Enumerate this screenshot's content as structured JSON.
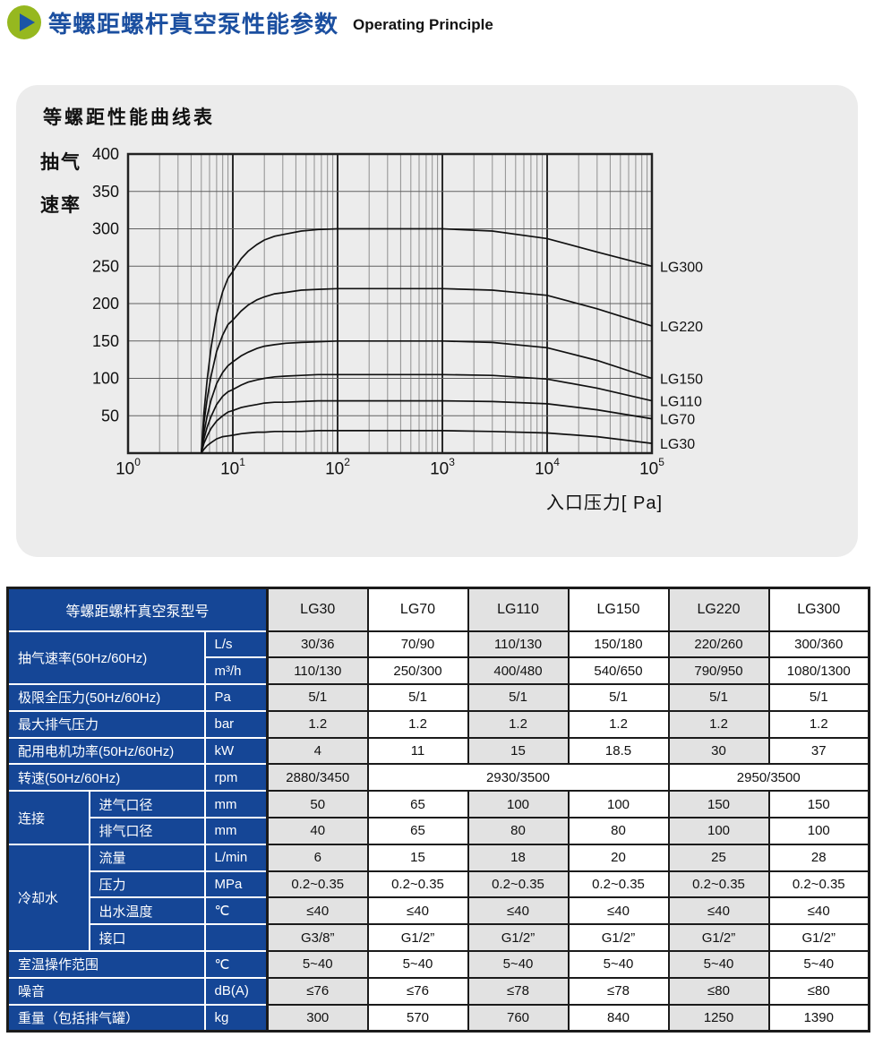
{
  "page": {
    "title": "等螺距螺杆真空泵性能参数",
    "subtitle": "Operating Principle"
  },
  "colors": {
    "title_blue": "#1b4fa0",
    "table_header_blue": "#154696",
    "icon_green": "#96b81f",
    "icon_triangle_blue": "#1b55a6",
    "card_background": "#ececec",
    "cell_gray": "#e2e2e2",
    "cell_white": "#ffffff",
    "border_dark": "#1b1b1b",
    "curve_black": "#111111"
  },
  "chart_data": {
    "type": "line",
    "title": "等螺距性能曲线表",
    "ylabel_lines": [
      "抽气",
      "速率"
    ],
    "xlabel": "入口压力[ Pa]",
    "x_scale": "log",
    "x_tick_base": "10",
    "x_tick_exponents": [
      0,
      1,
      2,
      3,
      4,
      5
    ],
    "xlim": [
      1,
      100000
    ],
    "ylim": [
      0,
      400
    ],
    "y_ticks": [
      50,
      100,
      150,
      200,
      250,
      300,
      350,
      400
    ],
    "grid": true,
    "legend_position": "right-of-curves",
    "x": [
      5,
      5.3,
      5.7,
      6.2,
      7,
      8,
      9,
      10,
      12,
      14,
      17,
      20,
      25,
      32,
      45,
      65,
      100,
      300,
      1000,
      3000,
      10000,
      30000,
      100000
    ],
    "series": [
      {
        "name": "LG300",
        "values": [
          0,
          54,
          99,
          141,
          186,
          216,
          234,
          243,
          260,
          270,
          279,
          285,
          290,
          293,
          297,
          299,
          300,
          300,
          300,
          297,
          287,
          269,
          250
        ]
      },
      {
        "name": "LG220",
        "values": [
          0,
          40,
          73,
          103,
          136,
          158,
          172,
          178,
          190,
          198,
          205,
          209,
          213,
          215,
          218,
          219,
          220,
          220,
          220,
          218,
          211,
          193,
          170
        ]
      },
      {
        "name": "LG150",
        "values": [
          0,
          27,
          50,
          71,
          93,
          108,
          117,
          122,
          130,
          135,
          140,
          143,
          145,
          147,
          148,
          149,
          150,
          150,
          150,
          148,
          141,
          124,
          100
        ]
      },
      {
        "name": "LG110",
        "values": [
          0,
          19,
          35,
          49,
          65,
          76,
          82,
          85,
          91,
          95,
          98,
          100,
          102,
          103,
          104,
          105,
          105,
          105,
          105,
          104,
          99,
          87,
          70
        ]
      },
      {
        "name": "LG70",
        "values": [
          0,
          13,
          23,
          33,
          43,
          50,
          55,
          57,
          61,
          63,
          65,
          67,
          68,
          68,
          69,
          70,
          70,
          70,
          70,
          69,
          66,
          58,
          46
        ]
      },
      {
        "name": "LG30",
        "values": [
          0,
          5,
          10,
          14,
          19,
          22,
          23,
          24,
          26,
          27,
          28,
          28,
          29,
          29,
          29,
          30,
          30,
          30,
          30,
          29,
          27,
          22,
          13
        ]
      }
    ]
  },
  "table": {
    "header": {
      "label": "等螺距螺杆真空泵型号",
      "models": [
        "LG30",
        "LG70",
        "LG110",
        "LG150",
        "LG220",
        "LG300"
      ]
    },
    "rows": [
      {
        "label": "抽气速率(50Hz/60Hz)",
        "label_rows": 2,
        "unit": "L/s",
        "cells": [
          "30/36",
          "70/90",
          "110/130",
          "150/180",
          "220/260",
          "300/360"
        ]
      },
      {
        "unit": "m³/h",
        "cells": [
          "110/130",
          "250/300",
          "400/480",
          "540/650",
          "790/950",
          "1080/1300"
        ]
      },
      {
        "label": "极限全压力(50Hz/60Hz)",
        "unit": "Pa",
        "cells": [
          "5/1",
          "5/1",
          "5/1",
          "5/1",
          "5/1",
          "5/1"
        ]
      },
      {
        "label": "最大排气压力",
        "unit": "bar",
        "cells": [
          "1.2",
          "1.2",
          "1.2",
          "1.2",
          "1.2",
          "1.2"
        ]
      },
      {
        "label": "配用电机功率(50Hz/60Hz)",
        "unit": "kW",
        "cells": [
          "4",
          "11",
          "15",
          "18.5",
          "30",
          "37"
        ]
      },
      {
        "label": "转速(50Hz/60Hz)",
        "unit": "rpm",
        "cells": [
          {
            "v": "2880/3450",
            "span": 1
          },
          {
            "v": "2930/3500",
            "span": 3
          },
          {
            "v": "2950/3500",
            "span": 2
          }
        ]
      },
      {
        "group": "连接",
        "group_rows": 2,
        "sublabel": "进气口径",
        "unit": "mm",
        "cells": [
          "50",
          "65",
          "100",
          "100",
          "150",
          "150"
        ]
      },
      {
        "sublabel": "排气口径",
        "unit": "mm",
        "cells": [
          "40",
          "65",
          "80",
          "80",
          "100",
          "100"
        ]
      },
      {
        "group": "冷却水",
        "group_rows": 4,
        "sublabel": "流量",
        "unit": "L/min",
        "cells": [
          "6",
          "15",
          "18",
          "20",
          "25",
          "28"
        ]
      },
      {
        "sublabel": "压力",
        "unit": "MPa",
        "cells": [
          "0.2~0.35",
          "0.2~0.35",
          "0.2~0.35",
          "0.2~0.35",
          "0.2~0.35",
          "0.2~0.35"
        ]
      },
      {
        "sublabel": "出水温度",
        "unit": "℃",
        "cells": [
          "≤40",
          "≤40",
          "≤40",
          "≤40",
          "≤40",
          "≤40"
        ]
      },
      {
        "sublabel": "接口",
        "unit": "",
        "cells": [
          "G3/8”",
          "G1/2”",
          "G1/2”",
          "G1/2”",
          "G1/2”",
          "G1/2”"
        ]
      },
      {
        "label": "室温操作范围",
        "unit": "℃",
        "cells": [
          "5~40",
          "5~40",
          "5~40",
          "5~40",
          "5~40",
          "5~40"
        ]
      },
      {
        "label": "噪音",
        "unit": "dB(A)",
        "cells": [
          "≤76",
          "≤76",
          "≤78",
          "≤78",
          "≤80",
          "≤80"
        ]
      },
      {
        "label": "重量（包括排气罐）",
        "unit": "kg",
        "cells": [
          "300",
          "570",
          "760",
          "840",
          "1250",
          "1390"
        ]
      }
    ]
  }
}
